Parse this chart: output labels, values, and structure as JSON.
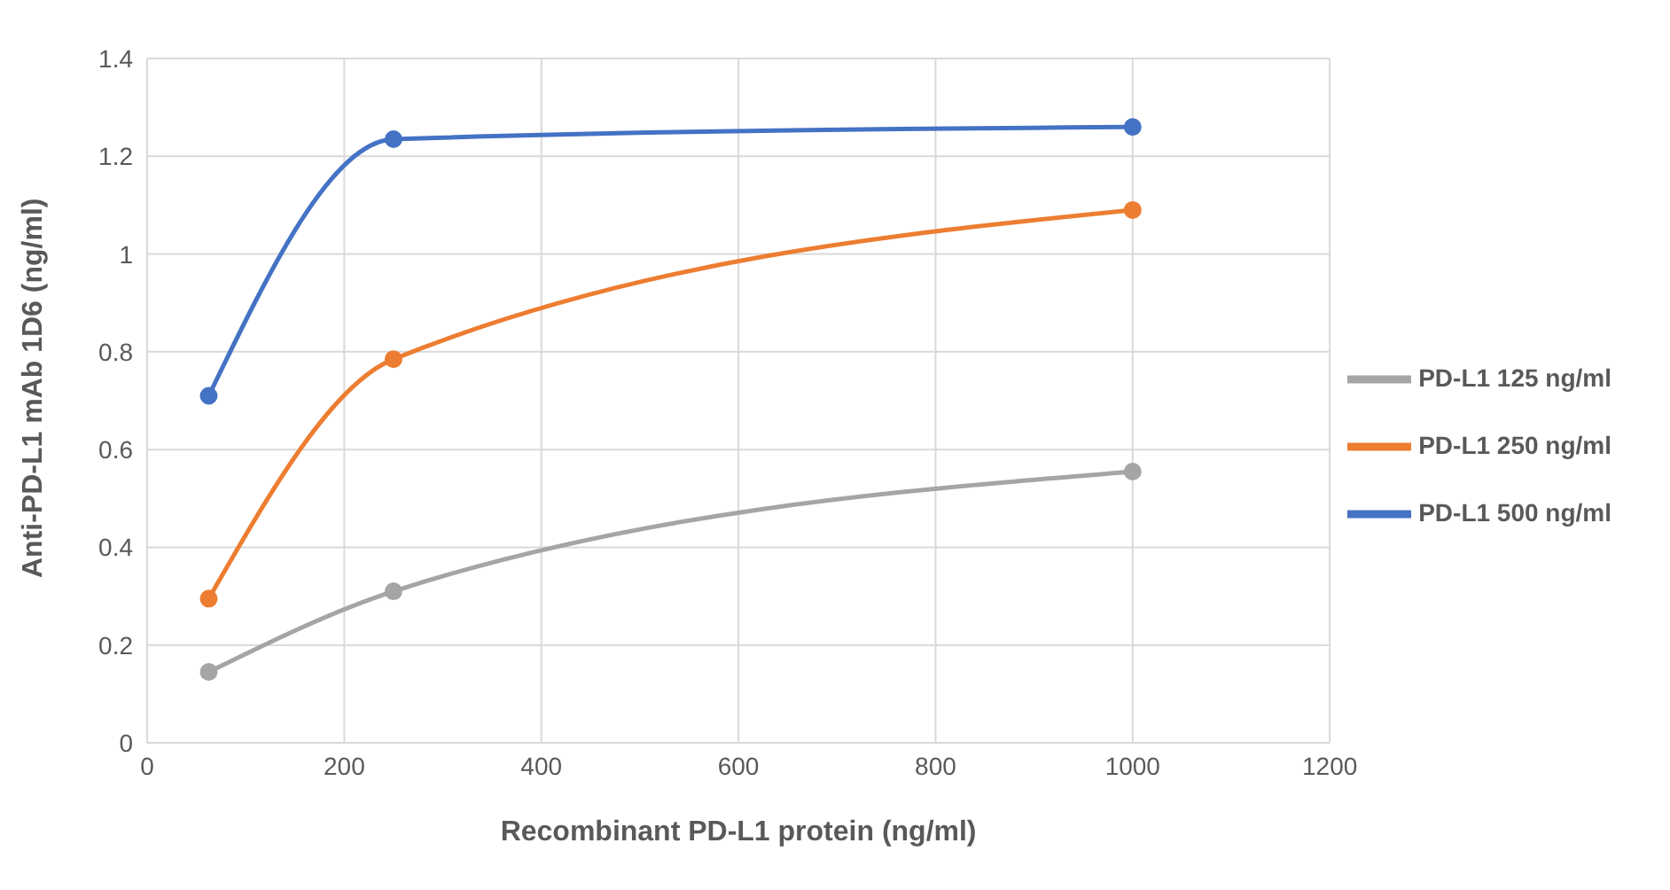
{
  "chart_data": {
    "type": "line",
    "xlabel": "Recombinant PD-L1 protein (ng/ml)",
    "ylabel": "Anti-PD-L1 mAb 1D6 (ng/ml)",
    "x": [
      62.5,
      250,
      1000
    ],
    "series": [
      {
        "name": "PD-L1 500 ng/ml",
        "color": "#4472c4",
        "values": [
          0.71,
          1.235,
          1.26
        ]
      },
      {
        "name": "PD-L1 250 ng/ml",
        "color": "#ed7d31",
        "values": [
          0.295,
          0.785,
          1.09
        ]
      },
      {
        "name": "PD-L1 125 ng/ml",
        "color": "#a5a5a5",
        "values": [
          0.145,
          0.31,
          0.555
        ]
      }
    ],
    "xlim": [
      0,
      1200
    ],
    "xticks": [
      0,
      200,
      400,
      600,
      800,
      1000,
      1200
    ],
    "ylim": [
      0,
      1.4
    ],
    "yticks": [
      0,
      0.2,
      0.4,
      0.6,
      0.8,
      1,
      1.2,
      1.4
    ],
    "grid": true,
    "legend": "right",
    "marker": "circle",
    "line_style": "solid"
  }
}
